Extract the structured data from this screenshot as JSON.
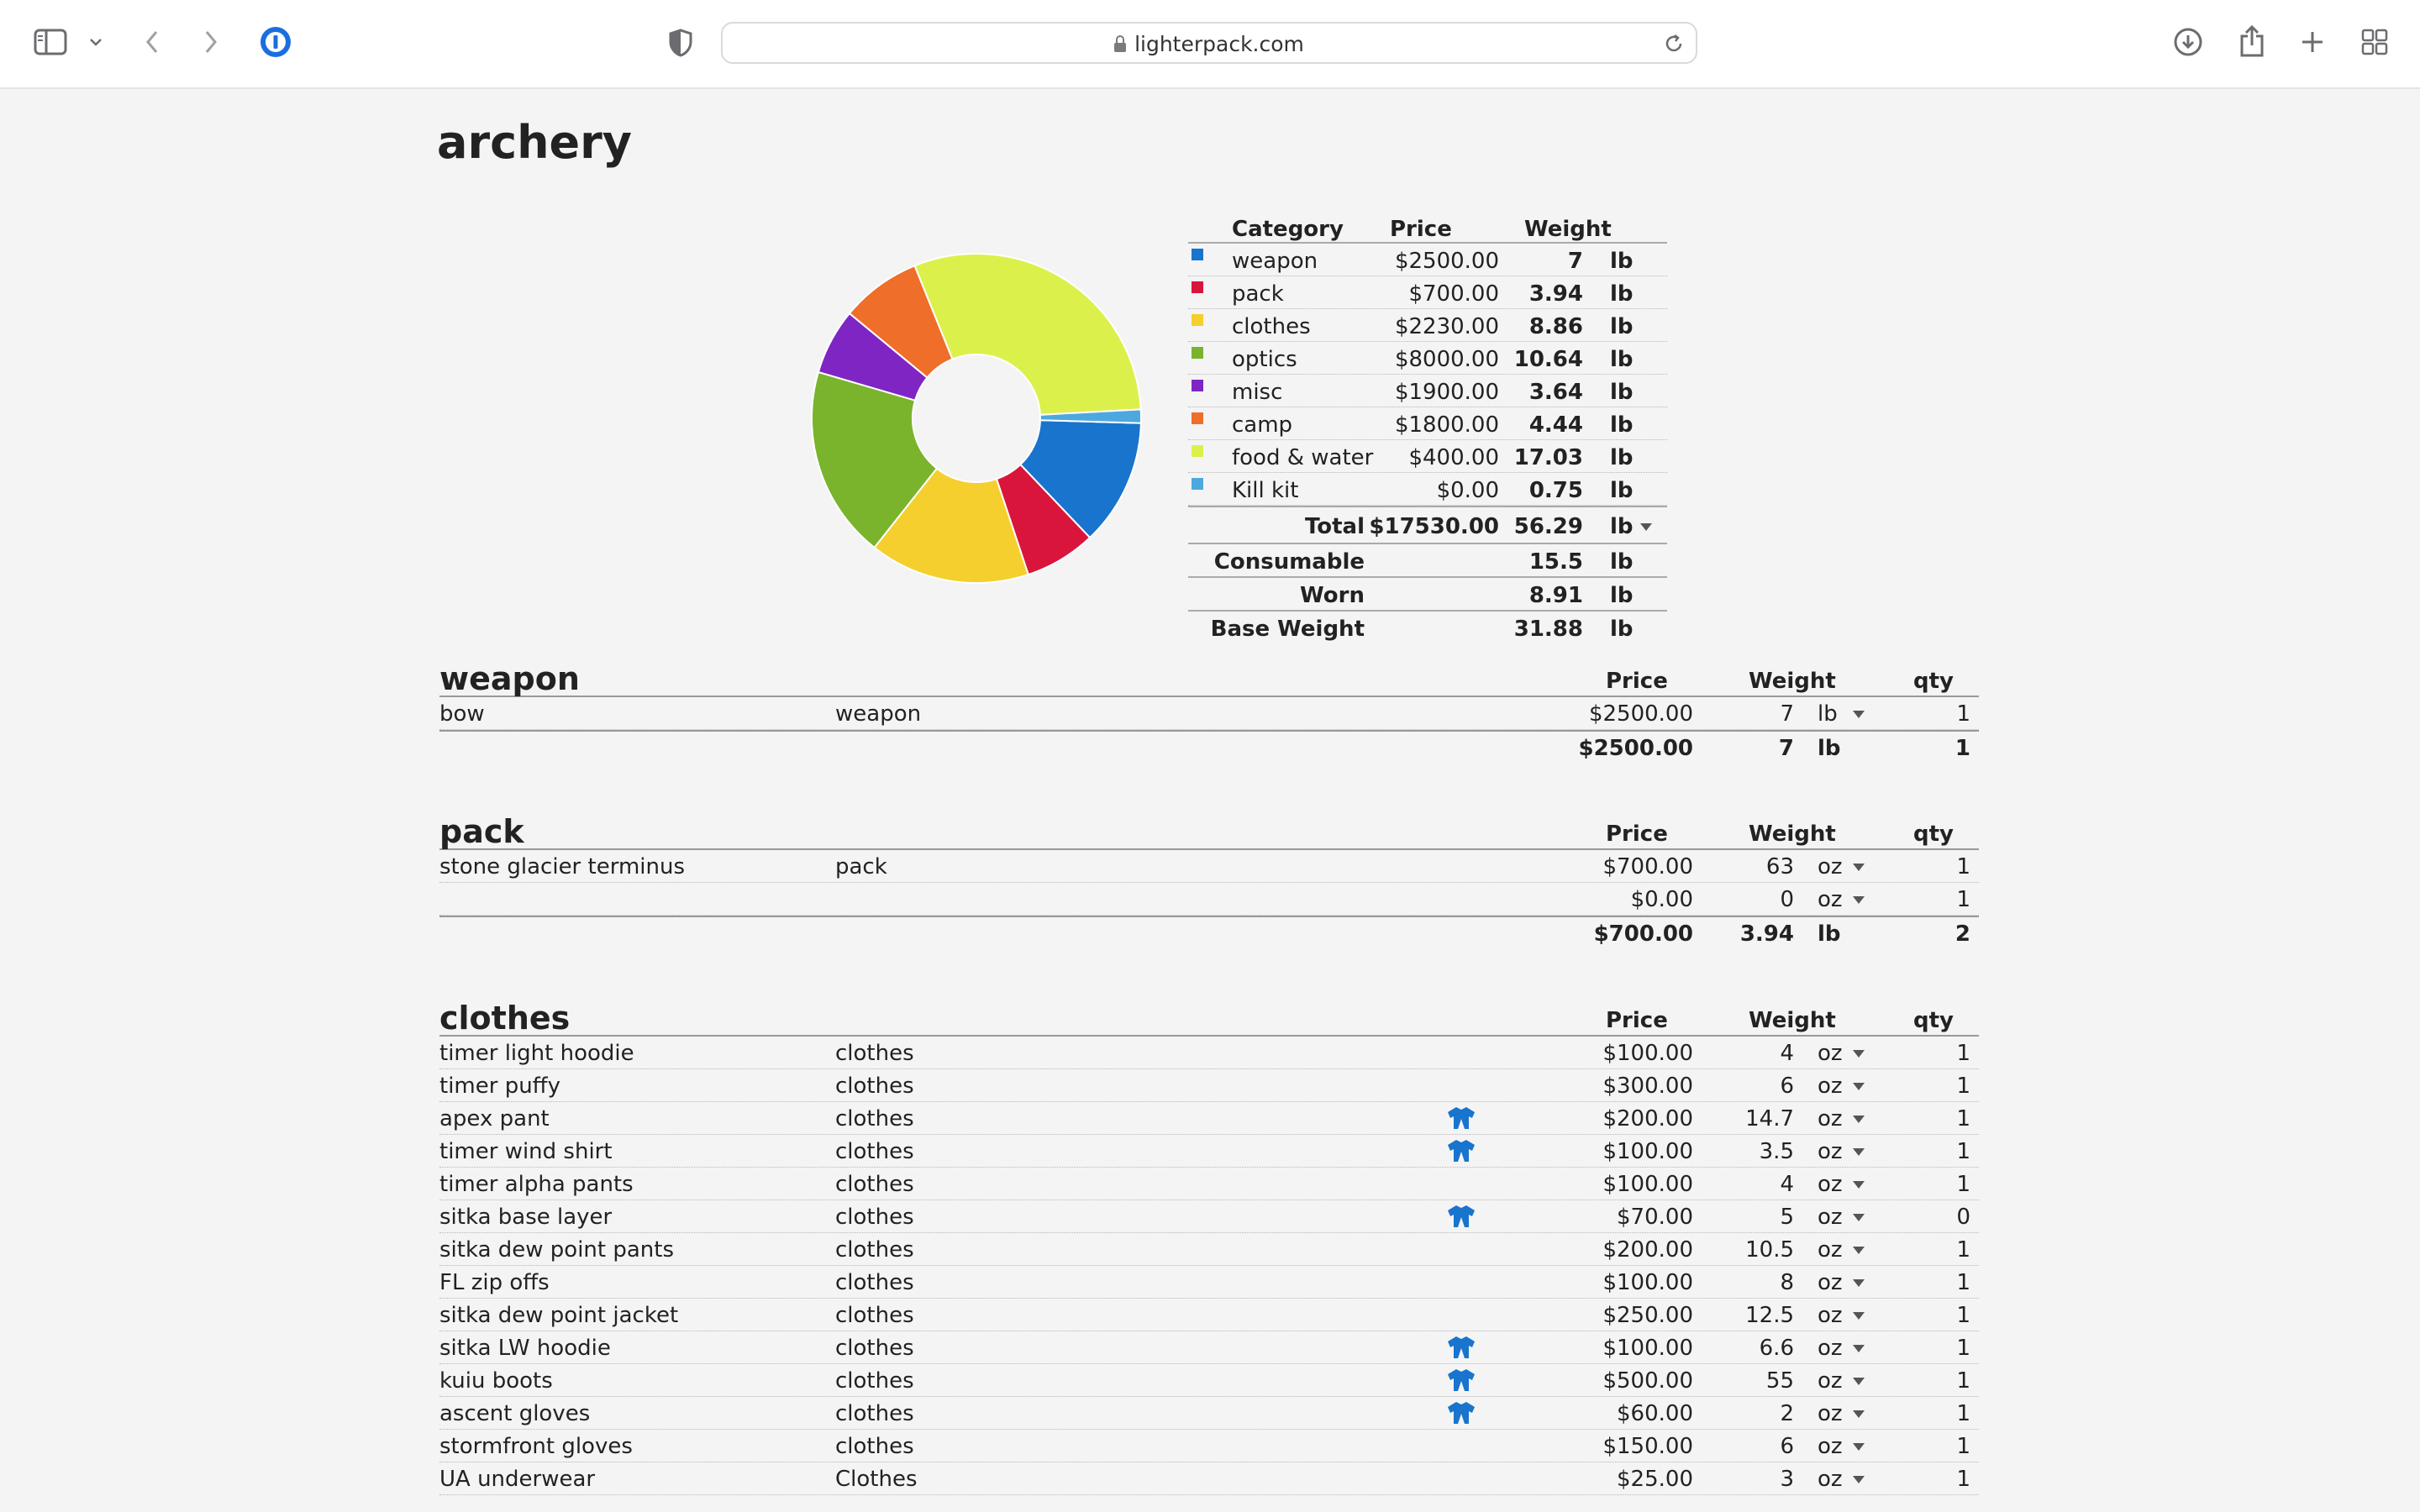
{
  "browser": {
    "url": "lighterpack.com"
  },
  "page": {
    "title": "archery"
  },
  "summary": {
    "headers": {
      "category": "Category",
      "price": "Price",
      "weight": "Weight"
    },
    "rows": [
      {
        "name": "weapon",
        "price": "$2500.00",
        "weight": "7",
        "unit": "lb",
        "color": "#1874cd"
      },
      {
        "name": "pack",
        "price": "$700.00",
        "weight": "3.94",
        "unit": "lb",
        "color": "#d9153b"
      },
      {
        "name": "clothes",
        "price": "$2230.00",
        "weight": "8.86",
        "unit": "lb",
        "color": "#f5cf2e"
      },
      {
        "name": "optics",
        "price": "$8000.00",
        "weight": "10.64",
        "unit": "lb",
        "color": "#79b42c"
      },
      {
        "name": "misc",
        "price": "$1900.00",
        "weight": "3.64",
        "unit": "lb",
        "color": "#7f25c4"
      },
      {
        "name": "camp",
        "price": "$1800.00",
        "weight": "4.44",
        "unit": "lb",
        "color": "#ee6e2a"
      },
      {
        "name": "food & water",
        "price": "$400.00",
        "weight": "17.03",
        "unit": "lb",
        "color": "#dcf04c"
      },
      {
        "name": "Kill kit",
        "price": "$0.00",
        "weight": "0.75",
        "unit": "lb",
        "color": "#4ea8e0"
      }
    ],
    "total": {
      "label": "Total",
      "price": "$17530.00",
      "weight": "56.29",
      "unit": "lb"
    },
    "stats": [
      {
        "label": "Consumable",
        "weight": "15.5",
        "unit": "lb"
      },
      {
        "label": "Worn",
        "weight": "8.91",
        "unit": "lb"
      },
      {
        "label": "Base Weight",
        "weight": "31.88",
        "unit": "lb"
      }
    ]
  },
  "chart_data": {
    "type": "pie",
    "categories": [
      "weapon",
      "pack",
      "clothes",
      "optics",
      "misc",
      "camp",
      "food & water",
      "Kill kit"
    ],
    "values": [
      7,
      3.94,
      8.86,
      10.64,
      3.64,
      4.44,
      17.03,
      0.75
    ],
    "colors": [
      "#1874cd",
      "#d9153b",
      "#f5cf2e",
      "#79b42c",
      "#7f25c4",
      "#ee6e2a",
      "#dcf04c",
      "#4ea8e0"
    ],
    "donut": true
  },
  "column_headers": {
    "price": "Price",
    "weight": "Weight",
    "qty": "qty"
  },
  "categories": [
    {
      "name": "weapon",
      "items": [
        {
          "name": "bow",
          "desc": "weapon",
          "worn": false,
          "price": "$2500.00",
          "weight": "7",
          "unit": "lb",
          "qty": "1"
        }
      ],
      "total": {
        "price": "$2500.00",
        "weight": "7",
        "unit": "lb",
        "qty": "1"
      }
    },
    {
      "name": "pack",
      "items": [
        {
          "name": "stone glacier terminus",
          "desc": "pack",
          "worn": false,
          "price": "$700.00",
          "weight": "63",
          "unit": "oz",
          "qty": "1"
        },
        {
          "name": "",
          "desc": "",
          "worn": false,
          "price": "$0.00",
          "weight": "0",
          "unit": "oz",
          "qty": "1"
        }
      ],
      "total": {
        "price": "$700.00",
        "weight": "3.94",
        "unit": "lb",
        "qty": "2"
      }
    },
    {
      "name": "clothes",
      "items": [
        {
          "name": "timer light hoodie",
          "desc": "clothes",
          "worn": false,
          "price": "$100.00",
          "weight": "4",
          "unit": "oz",
          "qty": "1"
        },
        {
          "name": "timer puffy",
          "desc": "clothes",
          "worn": false,
          "price": "$300.00",
          "weight": "6",
          "unit": "oz",
          "qty": "1"
        },
        {
          "name": "apex pant",
          "desc": "clothes",
          "worn": true,
          "price": "$200.00",
          "weight": "14.7",
          "unit": "oz",
          "qty": "1"
        },
        {
          "name": "timer wind shirt",
          "desc": "clothes",
          "worn": true,
          "price": "$100.00",
          "weight": "3.5",
          "unit": "oz",
          "qty": "1"
        },
        {
          "name": "timer alpha pants",
          "desc": "clothes",
          "worn": false,
          "price": "$100.00",
          "weight": "4",
          "unit": "oz",
          "qty": "1"
        },
        {
          "name": "sitka base layer",
          "desc": "clothes",
          "worn": true,
          "price": "$70.00",
          "weight": "5",
          "unit": "oz",
          "qty": "0"
        },
        {
          "name": "sitka dew point pants",
          "desc": "clothes",
          "worn": false,
          "price": "$200.00",
          "weight": "10.5",
          "unit": "oz",
          "qty": "1"
        },
        {
          "name": "FL zip offs",
          "desc": "clothes",
          "worn": false,
          "price": "$100.00",
          "weight": "8",
          "unit": "oz",
          "qty": "1"
        },
        {
          "name": "sitka dew point jacket",
          "desc": "clothes",
          "worn": false,
          "price": "$250.00",
          "weight": "12.5",
          "unit": "oz",
          "qty": "1"
        },
        {
          "name": "sitka LW hoodie",
          "desc": "clothes",
          "worn": true,
          "price": "$100.00",
          "weight": "6.6",
          "unit": "oz",
          "qty": "1"
        },
        {
          "name": "kuiu boots",
          "desc": "clothes",
          "worn": true,
          "price": "$500.00",
          "weight": "55",
          "unit": "oz",
          "qty": "1"
        },
        {
          "name": "ascent gloves",
          "desc": "clothes",
          "worn": true,
          "price": "$60.00",
          "weight": "2",
          "unit": "oz",
          "qty": "1"
        },
        {
          "name": "stormfront gloves",
          "desc": "clothes",
          "worn": false,
          "price": "$150.00",
          "weight": "6",
          "unit": "oz",
          "qty": "1"
        },
        {
          "name": "UA underwear",
          "desc": "Clothes",
          "worn": false,
          "price": "$25.00",
          "weight": "3",
          "unit": "oz",
          "qty": "1"
        }
      ]
    }
  ]
}
